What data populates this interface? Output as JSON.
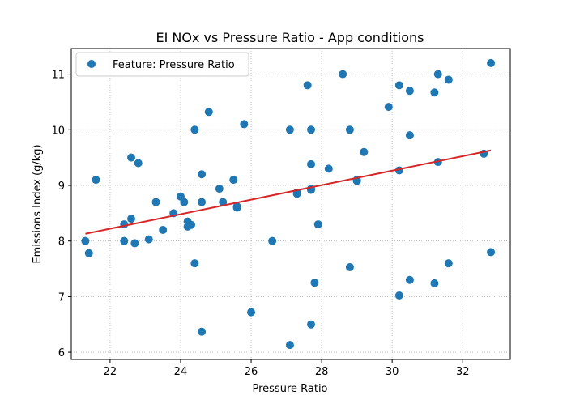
{
  "chart_data": {
    "type": "scatter",
    "title": "EI NOx vs Pressure Ratio - App conditions",
    "xlabel": "Pressure Ratio",
    "ylabel": "Emissions Index (g/kg)",
    "xlim": [
      20.9,
      33.35
    ],
    "ylim": [
      5.87,
      11.46
    ],
    "xticks": [
      22,
      24,
      26,
      28,
      30,
      32
    ],
    "yticks": [
      6,
      7,
      8,
      9,
      10,
      11
    ],
    "grid": true,
    "legend_position": "upper left",
    "series": [
      {
        "name": "Feature: Pressure Ratio",
        "kind": "scatter",
        "color": "#1f77b4",
        "points": [
          [
            21.3,
            8.0
          ],
          [
            21.4,
            7.78
          ],
          [
            21.6,
            9.1
          ],
          [
            22.4,
            8.3
          ],
          [
            22.4,
            8.0
          ],
          [
            22.6,
            8.4
          ],
          [
            22.6,
            9.5
          ],
          [
            22.7,
            7.96
          ],
          [
            22.8,
            9.4
          ],
          [
            23.1,
            8.03
          ],
          [
            23.3,
            8.7
          ],
          [
            23.5,
            8.2
          ],
          [
            23.8,
            8.5
          ],
          [
            24.0,
            8.8
          ],
          [
            24.1,
            8.7
          ],
          [
            24.2,
            8.35
          ],
          [
            24.2,
            8.26
          ],
          [
            24.3,
            8.29
          ],
          [
            24.4,
            10.0
          ],
          [
            24.4,
            7.6
          ],
          [
            24.6,
            9.2
          ],
          [
            24.6,
            8.7
          ],
          [
            24.6,
            6.37
          ],
          [
            24.8,
            10.32
          ],
          [
            25.1,
            8.94
          ],
          [
            25.2,
            8.7
          ],
          [
            25.5,
            9.1
          ],
          [
            25.6,
            8.6
          ],
          [
            25.6,
            8.62
          ],
          [
            25.8,
            10.1
          ],
          [
            26.0,
            6.72
          ],
          [
            26.6,
            8.0
          ],
          [
            27.1,
            10.0
          ],
          [
            27.1,
            6.13
          ],
          [
            27.3,
            8.85
          ],
          [
            27.3,
            8.87
          ],
          [
            27.6,
            10.8
          ],
          [
            27.7,
            10.0
          ],
          [
            27.7,
            9.38
          ],
          [
            27.7,
            8.92
          ],
          [
            27.7,
            8.94
          ],
          [
            27.7,
            6.5
          ],
          [
            27.8,
            7.25
          ],
          [
            27.9,
            8.3
          ],
          [
            28.2,
            9.3
          ],
          [
            28.6,
            11.0
          ],
          [
            28.8,
            10.0
          ],
          [
            28.8,
            7.53
          ],
          [
            29.0,
            9.08
          ],
          [
            29.0,
            9.1
          ],
          [
            29.2,
            9.6
          ],
          [
            29.9,
            10.41
          ],
          [
            30.2,
            10.8
          ],
          [
            30.2,
            9.27
          ],
          [
            30.2,
            7.02
          ],
          [
            30.5,
            10.7
          ],
          [
            30.5,
            9.9
          ],
          [
            30.5,
            7.3
          ],
          [
            31.2,
            10.67
          ],
          [
            31.2,
            7.24
          ],
          [
            31.3,
            11.0
          ],
          [
            31.3,
            9.42
          ],
          [
            31.6,
            10.9
          ],
          [
            31.6,
            7.6
          ],
          [
            32.6,
            9.57
          ],
          [
            32.8,
            11.2
          ],
          [
            32.8,
            7.8
          ]
        ]
      },
      {
        "kind": "line",
        "color": "#d62728",
        "x": [
          21.3,
          32.8
        ],
        "y": [
          8.13,
          9.63
        ]
      }
    ]
  }
}
